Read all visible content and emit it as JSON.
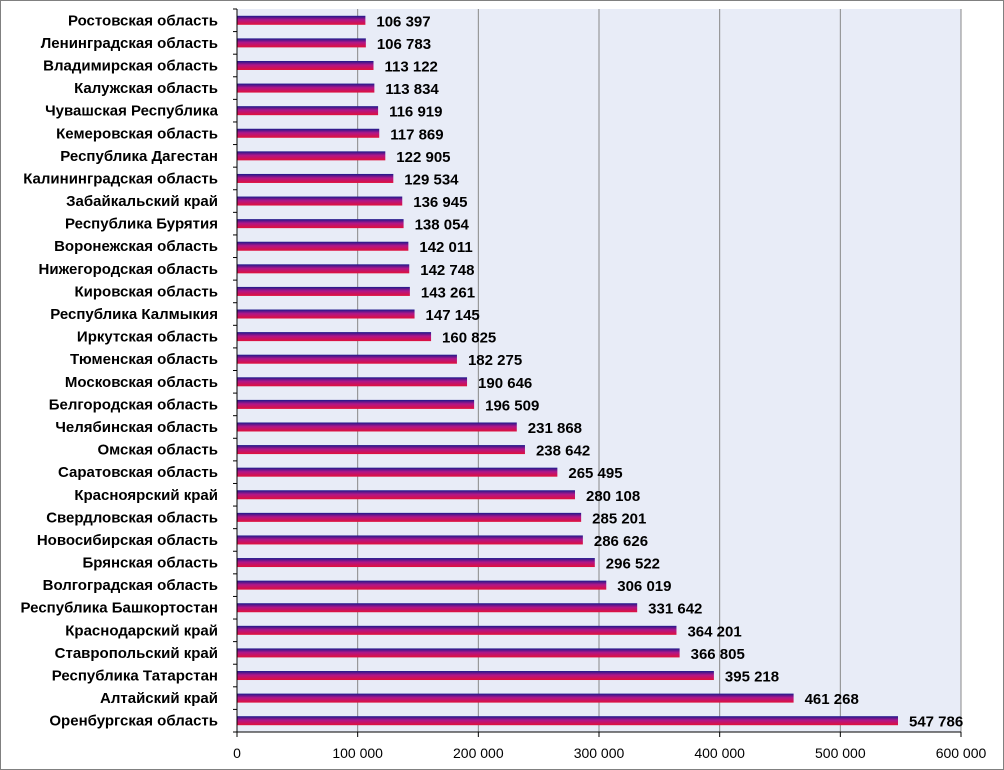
{
  "chart_data": {
    "type": "bar",
    "orientation": "horizontal",
    "grid": true,
    "legend": "none",
    "colors": {
      "plot_background": "#e8ecf7",
      "gridline": "#888888",
      "bar_top": "#1a1a8c",
      "bar_mid": "#b0168a",
      "bar_bottom": "#e0103a"
    },
    "xlim": [
      0,
      600000
    ],
    "x_ticks": [
      {
        "value": 0,
        "label": "0"
      },
      {
        "value": 100000,
        "label": "100 000"
      },
      {
        "value": 200000,
        "label": "200 000"
      },
      {
        "value": 300000,
        "label": "300 000"
      },
      {
        "value": 400000,
        "label": "400 000"
      },
      {
        "value": 500000,
        "label": "500 000"
      },
      {
        "value": 600000,
        "label": "600 000"
      }
    ],
    "categories": [
      "Ростовская область",
      "Ленинградская область",
      "Владимирская область",
      "Калужская область",
      "Чувашская Республика",
      "Кемеровская область",
      "Республика Дагестан",
      "Калининградская область",
      "Забайкальский край",
      "Республика Бурятия",
      "Воронежская область",
      "Нижегородская область",
      "Кировская область",
      "Республика Калмыкия",
      "Иркутская область",
      "Тюменская область",
      "Московская область",
      "Белгородская область",
      "Челябинская область",
      "Омская область",
      "Саратовская область",
      "Красноярский край",
      "Свердловская область",
      "Новосибирская область",
      "Брянская область",
      "Волгоградская область",
      "Республика Башкортостан",
      "Краснодарский край",
      "Ставропольский край",
      "Республика Татарстан",
      "Алтайский край",
      "Оренбургская область"
    ],
    "values": [
      106397,
      106783,
      113122,
      113834,
      116919,
      117869,
      122905,
      129534,
      136945,
      138054,
      142011,
      142748,
      143261,
      147145,
      160825,
      182275,
      190646,
      196509,
      231868,
      238642,
      265495,
      280108,
      285201,
      286626,
      296522,
      306019,
      331642,
      364201,
      366805,
      395218,
      461268,
      547786
    ],
    "value_labels": [
      "106 397",
      "106 783",
      "113 122",
      "113 834",
      "116 919",
      "117 869",
      "122 905",
      "129 534",
      "136 945",
      "138 054",
      "142 011",
      "142 748",
      "143 261",
      "147 145",
      "160 825",
      "182 275",
      "190 646",
      "196 509",
      "231 868",
      "238 642",
      "265 495",
      "280 108",
      "285 201",
      "286 626",
      "296 522",
      "306 019",
      "331 642",
      "364 201",
      "366 805",
      "395 218",
      "461 268",
      "547 786"
    ]
  }
}
